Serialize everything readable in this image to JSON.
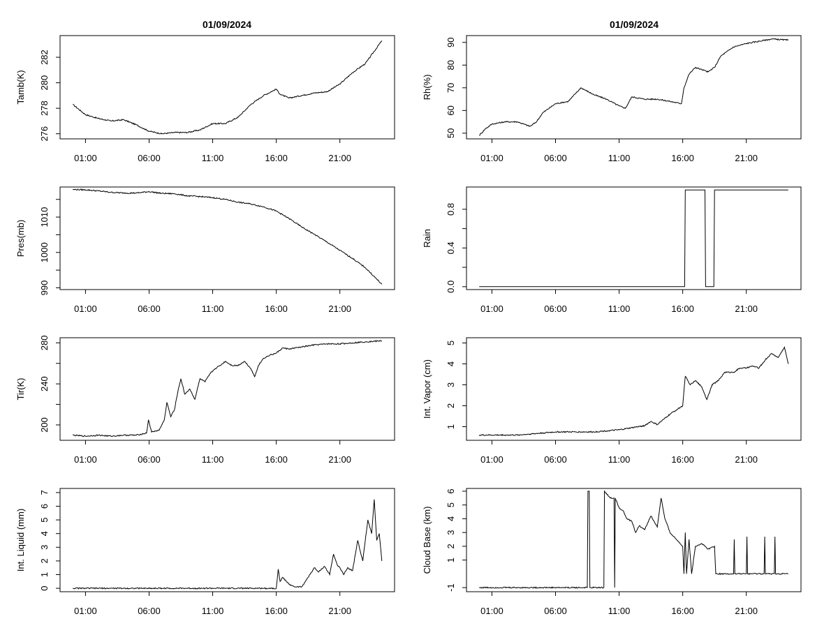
{
  "titles": {
    "left": "01/09/2024",
    "right": "01/09/2024"
  },
  "x_axis": {
    "unit": "hours",
    "range": [
      -1,
      25.3
    ],
    "ticks": [
      1,
      6,
      11,
      16,
      21
    ],
    "tick_labels": [
      "01:00",
      "06:00",
      "11:00",
      "16:00",
      "21:00"
    ]
  },
  "chart_data": [
    {
      "type": "line",
      "ylabel": "Tamb(K)",
      "ylim": [
        275.6,
        283.7
      ],
      "yticks": [
        276,
        278,
        280,
        282
      ],
      "ytick_labels": [
        "276",
        "278",
        "280",
        "282"
      ],
      "x": [
        0,
        1,
        2,
        3,
        4,
        5,
        6,
        7,
        8,
        9,
        10,
        11,
        12,
        13,
        14,
        15,
        16,
        16.3,
        17,
        18,
        19,
        20,
        21,
        22,
        23,
        24.3
      ],
      "y": [
        278.3,
        277.5,
        277.2,
        277.0,
        277.1,
        276.7,
        276.2,
        276.0,
        276.1,
        276.1,
        276.3,
        276.8,
        276.8,
        277.3,
        278.3,
        279.0,
        279.5,
        279.1,
        278.8,
        279.0,
        279.2,
        279.3,
        279.9,
        280.8,
        281.5,
        283.3
      ]
    },
    {
      "type": "line",
      "ylabel": "Rh(%)",
      "ylim": [
        47.5,
        93
      ],
      "yticks": [
        50,
        60,
        70,
        80,
        90
      ],
      "ytick_labels": [
        "50",
        "60",
        "70",
        "80",
        "90"
      ],
      "x": [
        0,
        0.5,
        1,
        2,
        3,
        4,
        4.5,
        5,
        6,
        7,
        8,
        9,
        10,
        11,
        11.5,
        12,
        13,
        14,
        15,
        15.9,
        16.1,
        16.5,
        17,
        17.5,
        18,
        18.5,
        19,
        20,
        21,
        22,
        23,
        24.3
      ],
      "y": [
        49,
        52,
        54,
        55,
        55,
        53,
        55,
        59,
        63,
        64,
        70,
        67,
        65,
        62,
        61,
        66,
        65,
        65,
        64,
        63,
        70,
        76,
        79,
        78,
        77,
        79,
        84,
        88,
        89.5,
        90.5,
        91.5,
        91
      ]
    },
    {
      "type": "line",
      "ylabel": "Pres(mb)",
      "ylim": [
        989.5,
        1018.5
      ],
      "yticks": [
        990,
        995,
        1000,
        1005,
        1010,
        1015
      ],
      "ytick_labels": [
        "990",
        "",
        "1000",
        "",
        "1010",
        ""
      ],
      "x": [
        0,
        1,
        2,
        3,
        4,
        5,
        6,
        7,
        8,
        9,
        10,
        11,
        12,
        13,
        14,
        15,
        16,
        17,
        18,
        19,
        20,
        21,
        22,
        23,
        24.3
      ],
      "y": [
        1017.8,
        1017.7,
        1017.4,
        1017.0,
        1016.8,
        1016.8,
        1017.2,
        1016.7,
        1016.6,
        1016.0,
        1015.8,
        1015.5,
        1015.0,
        1014.2,
        1013.7,
        1012.9,
        1011.7,
        1009.6,
        1007.2,
        1005.1,
        1002.9,
        1000.6,
        998.3,
        995.7,
        991.0
      ]
    },
    {
      "type": "line",
      "ylabel": "Rain",
      "ylim": [
        -0.03,
        1.03
      ],
      "yticks": [
        0,
        0.2,
        0.4,
        0.6,
        0.8
      ],
      "ytick_labels": [
        "0.0",
        "",
        "0.4",
        "",
        "0.8"
      ],
      "x": [
        0,
        16.15,
        16.2,
        17.75,
        17.8,
        18.45,
        18.5,
        24.3
      ],
      "y": [
        0,
        0,
        1,
        1,
        0,
        0,
        1,
        1
      ]
    },
    {
      "type": "line",
      "ylabel": "Tir(K)",
      "ylim": [
        185,
        285
      ],
      "yticks": [
        200,
        220,
        240,
        260,
        280
      ],
      "ytick_labels": [
        "200",
        "",
        "240",
        "",
        "280"
      ],
      "x": [
        0,
        1,
        2,
        3,
        4,
        5,
        5.8,
        5.95,
        6.2,
        6.8,
        7.2,
        7.4,
        7.7,
        8.0,
        8.3,
        8.5,
        8.8,
        9.2,
        9.6,
        10.0,
        10.4,
        10.8,
        11.2,
        11.6,
        12.0,
        12.5,
        13.0,
        13.5,
        14.0,
        14.3,
        14.6,
        15.0,
        15.5,
        16.0,
        16.5,
        17,
        18,
        19,
        20,
        21,
        22,
        23,
        24.3
      ],
      "y": [
        190,
        189,
        190,
        189,
        190,
        190,
        192,
        205,
        193,
        195,
        205,
        222,
        208,
        215,
        235,
        245,
        230,
        235,
        225,
        245,
        242,
        250,
        255,
        258,
        262,
        258,
        258,
        262,
        255,
        247,
        258,
        265,
        268,
        270,
        275,
        274,
        276,
        278,
        279,
        279,
        280,
        281,
        282
      ]
    },
    {
      "type": "line",
      "ylabel": "Int. Vapor (cm)",
      "ylim": [
        0.35,
        5.25
      ],
      "yticks": [
        1,
        2,
        3,
        4,
        5
      ],
      "ytick_labels": [
        "1",
        "2",
        "3",
        "4",
        "5"
      ],
      "x": [
        0,
        1,
        2,
        3,
        4,
        5,
        6,
        7,
        8,
        9,
        10,
        11,
        12,
        13,
        13.5,
        14,
        14.5,
        15,
        15.5,
        16,
        16.2,
        16.6,
        17,
        17.5,
        17.9,
        18.3,
        18.8,
        19.3,
        20,
        20.5,
        21,
        21.5,
        22,
        22.5,
        23,
        23.5,
        24,
        24.3
      ],
      "y": [
        0.6,
        0.6,
        0.6,
        0.6,
        0.65,
        0.7,
        0.75,
        0.75,
        0.75,
        0.75,
        0.8,
        0.85,
        0.95,
        1.05,
        1.25,
        1.1,
        1.35,
        1.6,
        1.8,
        2.0,
        3.4,
        3.0,
        3.2,
        2.9,
        2.3,
        3.0,
        3.2,
        3.6,
        3.6,
        3.8,
        3.8,
        3.9,
        3.8,
        4.2,
        4.5,
        4.3,
        4.8,
        4.0
      ]
    },
    {
      "type": "line",
      "ylabel": "Int. Liquid (mm)",
      "ylim": [
        -0.25,
        7.3
      ],
      "yticks": [
        0,
        1,
        2,
        3,
        4,
        5,
        6,
        7
      ],
      "ytick_labels": [
        "0",
        "1",
        "2",
        "3",
        "4",
        "5",
        "6",
        "7"
      ],
      "x": [
        0,
        16,
        16.15,
        16.3,
        16.5,
        17,
        17.5,
        18,
        18.5,
        19,
        19.3,
        19.8,
        20.2,
        20.5,
        20.8,
        21,
        21.3,
        21.6,
        22,
        22.4,
        22.8,
        23.2,
        23.5,
        23.7,
        23.9,
        24.1,
        24.3
      ],
      "y": [
        0,
        0,
        1.4,
        0.5,
        0.8,
        0.3,
        0.1,
        0.1,
        0.8,
        1.5,
        1.2,
        1.6,
        1.0,
        2.5,
        1.7,
        1.5,
        1.0,
        1.5,
        1.3,
        3.5,
        2.0,
        5.0,
        4.0,
        6.5,
        3.5,
        4.0,
        2.0
      ]
    },
    {
      "type": "line",
      "ylabel": "Cloud Base (km)",
      "ylim": [
        -1.3,
        6.2
      ],
      "yticks": [
        -1,
        1,
        2,
        3,
        4,
        5,
        6
      ],
      "ytick_labels": [
        "-1",
        "1",
        "2",
        "3",
        "4",
        "5",
        "6"
      ],
      "x": [
        0,
        8.5,
        8.55,
        8.65,
        8.7,
        9.8,
        9.85,
        10.3,
        10.6,
        10.65,
        10.7,
        11.0,
        11.3,
        11.6,
        12.0,
        12.3,
        12.6,
        13.0,
        13.5,
        14.0,
        14.3,
        14.6,
        15.0,
        15.5,
        16.0,
        16.1,
        16.2,
        16.3,
        16.5,
        16.7,
        17,
        17.5,
        18,
        18.5,
        18.6,
        20.0,
        20.05,
        20.1,
        21.0,
        21.05,
        21.1,
        22.4,
        22.45,
        22.5,
        23.2,
        23.25,
        23.3,
        24.3
      ],
      "y": [
        -1,
        -1,
        6,
        6,
        -1,
        -1,
        6,
        5.5,
        5.5,
        -1,
        5.5,
        4.8,
        4.6,
        4.0,
        3.8,
        3.0,
        3.5,
        3.2,
        4.2,
        3.4,
        5.5,
        4.0,
        3.0,
        2.5,
        2.0,
        0.0,
        3.0,
        0.0,
        2.5,
        0.0,
        2.0,
        2.2,
        1.8,
        2.0,
        0.0,
        0.0,
        2.5,
        0.0,
        0.0,
        2.7,
        0.0,
        0.0,
        2.7,
        0.0,
        0.0,
        2.7,
        0.0,
        0.0
      ]
    }
  ]
}
